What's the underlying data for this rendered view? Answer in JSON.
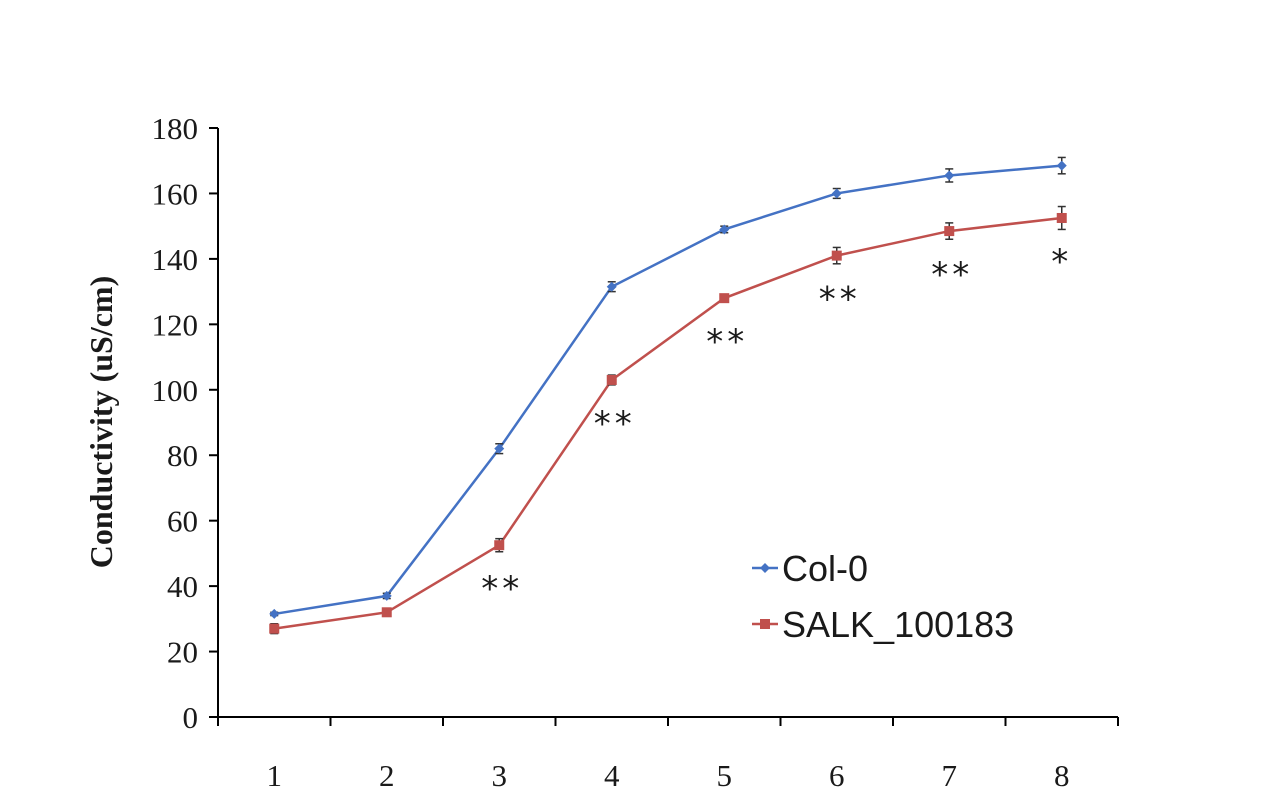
{
  "chart_data": {
    "type": "line",
    "title": "",
    "xlabel": "",
    "ylabel": "Conductivity (uS/cm)",
    "x": [
      "1",
      "2",
      "3",
      "4",
      "5",
      "6",
      "7",
      "8"
    ],
    "ylim": [
      0,
      180
    ],
    "yticks": [
      "0",
      "20",
      "40",
      "60",
      "80",
      "100",
      "120",
      "140",
      "160",
      "180"
    ],
    "grid": false,
    "legend_position": "bottom-right",
    "series": [
      {
        "name": "Col-0",
        "color": "#4472c4",
        "marker": "diamond",
        "values": [
          31.5,
          37,
          82,
          131.5,
          149,
          160,
          165.5,
          168.5
        ],
        "error": [
          0.5,
          0.8,
          1.5,
          1.5,
          1.0,
          1.5,
          2.0,
          2.5
        ]
      },
      {
        "name": "SALK_100183",
        "color": "#c0504d",
        "marker": "square",
        "values": [
          27,
          32,
          52.5,
          103,
          128,
          141,
          148.5,
          152.5
        ],
        "error": [
          1.5,
          0.8,
          2.0,
          1.5,
          1.0,
          2.5,
          2.5,
          3.5
        ]
      }
    ],
    "annotations": [
      "",
      "",
      "**",
      "**",
      "**",
      "**",
      "**",
      "*"
    ]
  }
}
